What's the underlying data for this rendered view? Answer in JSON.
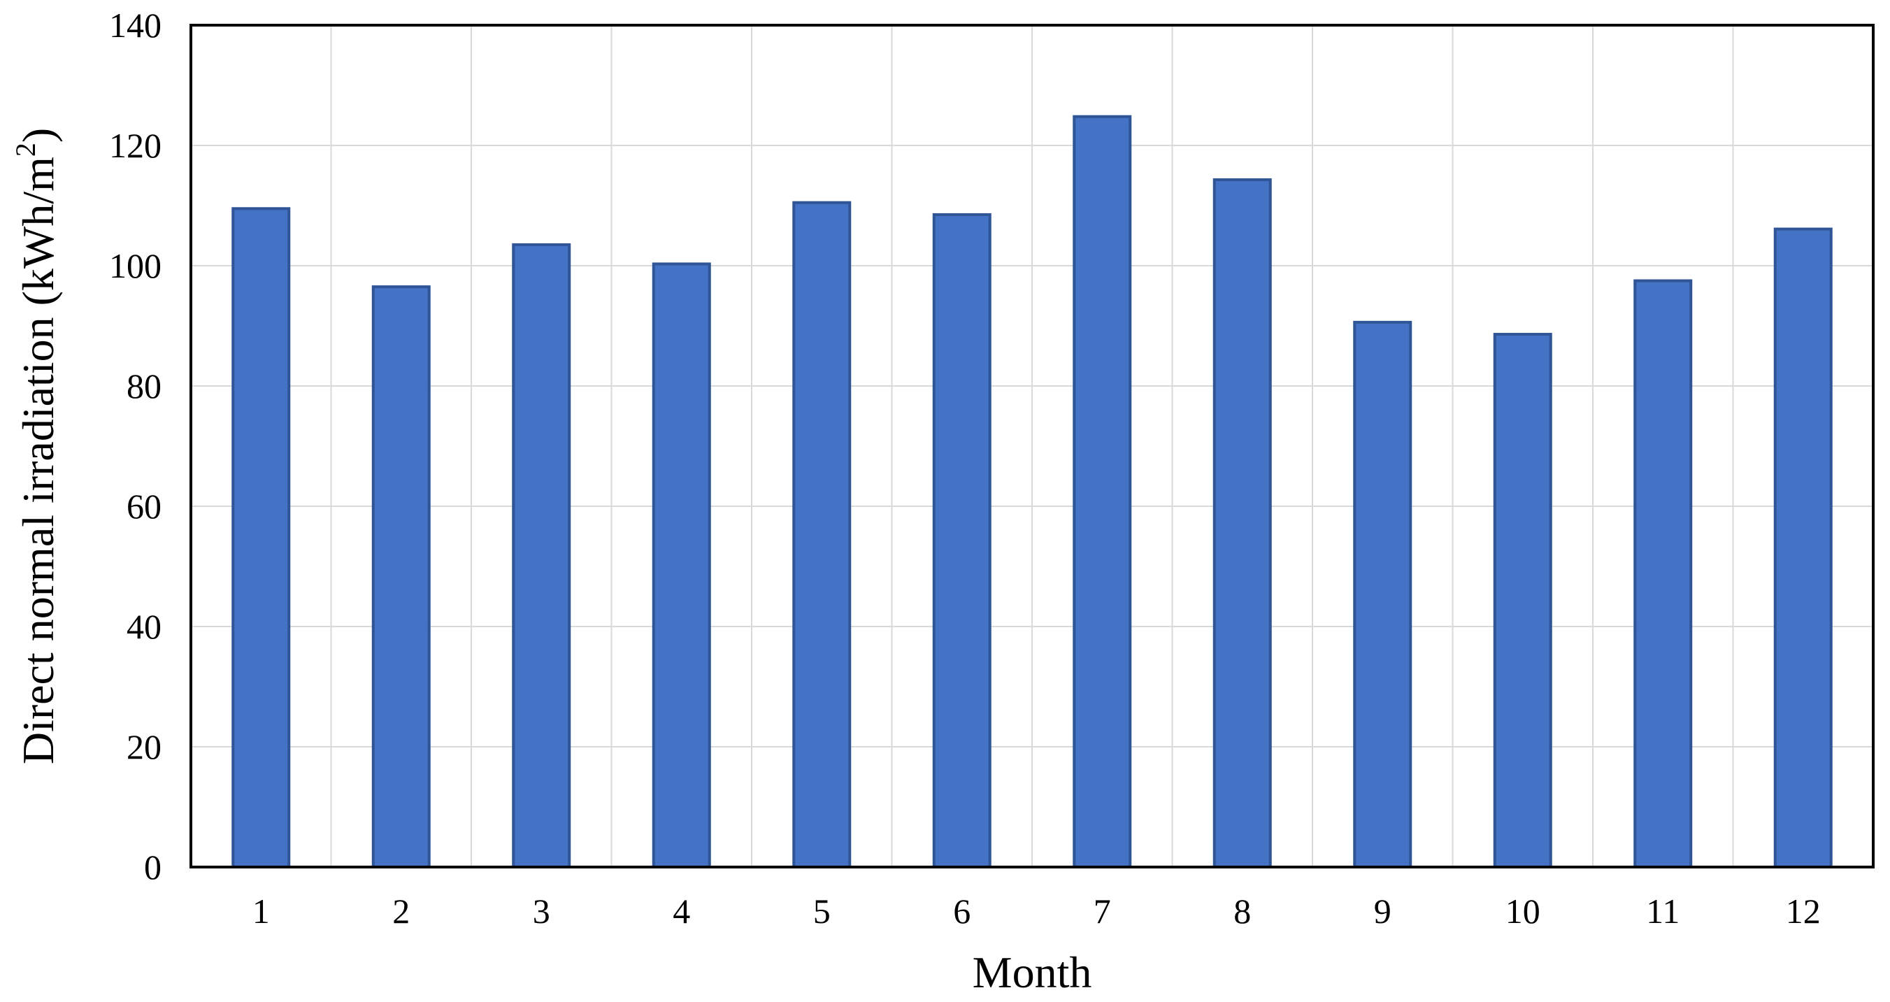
{
  "chart_data": {
    "type": "bar",
    "title": "",
    "xlabel": "Month",
    "ylabel": "Direct normal irradiation (kWh/m",
    "ylabel_superscript": "2",
    "ylabel_close": ")",
    "categories": [
      "1",
      "2",
      "3",
      "4",
      "5",
      "6",
      "7",
      "8",
      "9",
      "10",
      "11",
      "12"
    ],
    "series": [
      {
        "values": [
          109.5,
          96.5,
          103.5,
          100.3,
          110.5,
          108.5,
          124.8,
          114.3,
          90.6,
          88.6,
          97.5,
          106.1
        ]
      }
    ],
    "ylim": [
      0,
      140
    ],
    "yticks": [
      0,
      20,
      40,
      60,
      80,
      100,
      120,
      140
    ],
    "grid": true,
    "legend": "none",
    "colors": {
      "bar_fill": "#4472C4",
      "bar_edge": "#2F5597",
      "grid": "#D9D9D9",
      "axis": "#000000"
    }
  }
}
